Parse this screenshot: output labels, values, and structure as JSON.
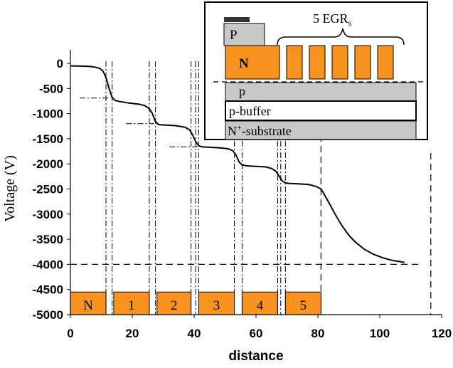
{
  "chart_data": {
    "type": "line",
    "xlabel": "distance",
    "ylabel": "Voltage (V)",
    "xlim": [
      0,
      120
    ],
    "ylim": [
      -5000,
      0
    ],
    "x_ticks": [
      0,
      20,
      40,
      60,
      80,
      100,
      120
    ],
    "y_ticks": [
      0,
      -500,
      -1000,
      -1500,
      -2000,
      -2500,
      -3000,
      -3500,
      -4000,
      -4500,
      -5000
    ],
    "series": [
      {
        "x": [
          0,
          3,
          6,
          8,
          9.5,
          10.5,
          11.5,
          12.5,
          13.5,
          14.5,
          16,
          19,
          22,
          24,
          25.5,
          26.5,
          27.5,
          28.5,
          31,
          34,
          37,
          38.5,
          39.5,
          40.5,
          41.5,
          42.5,
          45,
          48,
          51,
          52.5,
          53.5,
          54.5,
          55.5,
          57,
          60,
          63,
          65,
          66.5,
          67.5,
          68.5,
          69.5,
          71,
          74,
          77,
          79.5,
          81,
          82,
          84,
          86,
          88,
          90,
          92,
          95,
          98,
          101,
          104,
          106,
          108
        ],
        "y": [
          -50,
          -55,
          -60,
          -75,
          -100,
          -150,
          -280,
          -500,
          -680,
          -740,
          -760,
          -790,
          -810,
          -840,
          -900,
          -1000,
          -1160,
          -1220,
          -1230,
          -1240,
          -1270,
          -1320,
          -1420,
          -1560,
          -1640,
          -1660,
          -1670,
          -1680,
          -1700,
          -1740,
          -1820,
          -1960,
          -2020,
          -2040,
          -2050,
          -2060,
          -2090,
          -2150,
          -2250,
          -2340,
          -2380,
          -2390,
          -2400,
          -2410,
          -2450,
          -2500,
          -2600,
          -2820,
          -3050,
          -3250,
          -3420,
          -3550,
          -3700,
          -3800,
          -3870,
          -3920,
          -3940,
          -3960
        ]
      }
    ],
    "vertical_dashdot_x": [
      11.5,
      13.5,
      25.5,
      27.5,
      39,
      40.5,
      41.5,
      53,
      55.5,
      67,
      68,
      69.5
    ],
    "vertical_dashed_x": [
      81,
      116.5
    ],
    "horizontal_dashed_y": [
      -4000
    ],
    "step_markers": [
      {
        "x1": 3,
        "x2": 12.5,
        "y": -690
      },
      {
        "x1": 18,
        "x2": 27,
        "y": -1200
      },
      {
        "x1": 32,
        "x2": 41.5,
        "y": -1660
      }
    ],
    "bottom_blocks": [
      {
        "label": "N",
        "x1": 0,
        "x2": 11.5
      },
      {
        "label": "1",
        "x1": 14,
        "x2": 25.5
      },
      {
        "label": "2",
        "x1": 28,
        "x2": 39
      },
      {
        "label": "3",
        "x1": 41.5,
        "x2": 53
      },
      {
        "label": "4",
        "x1": 55.5,
        "x2": 67
      },
      {
        "label": "5",
        "x1": 69.5,
        "x2": 81
      }
    ],
    "blocks_ylim": [
      -4550,
      -5000
    ],
    "colors": {
      "orange": "#f7931e",
      "gray": "#c8c8c8",
      "black": "#000000"
    }
  },
  "inset": {
    "p_label": "P",
    "n_label": "N",
    "egr_prefix": "5 EGR",
    "egr_sub": "s",
    "p_layer": "p",
    "buffer_layer": "p-buffer",
    "substrate_prefix": "N",
    "substrate_sup": "+",
    "substrate_suffix": "-substrate"
  }
}
